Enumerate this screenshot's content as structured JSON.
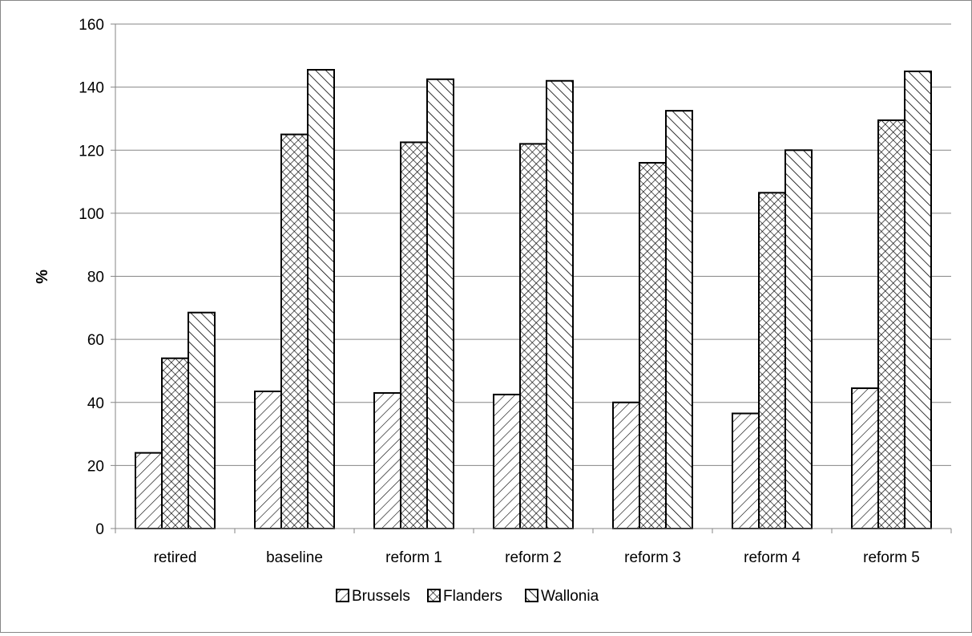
{
  "chart_data": {
    "type": "bar",
    "title": "",
    "xlabel": "",
    "ylabel": "%",
    "ylim": [
      0,
      160
    ],
    "yticks": [
      0,
      20,
      40,
      60,
      80,
      100,
      120,
      140,
      160
    ],
    "grid": true,
    "legend_position": "bottom",
    "categories": [
      "retired",
      "baseline",
      "reform 1",
      "reform 2",
      "reform 3",
      "reform 4",
      "reform 5"
    ],
    "series": [
      {
        "name": "Brussels",
        "pattern": "diagonal-hatch",
        "values": [
          24,
          43.5,
          43,
          42.5,
          40,
          36.5,
          44.5
        ]
      },
      {
        "name": "Flanders",
        "pattern": "cross-hatch",
        "values": [
          54,
          125,
          122.5,
          122,
          116,
          106.5,
          129.5
        ]
      },
      {
        "name": "Wallonia",
        "pattern": "back-diagonal-hatch",
        "values": [
          68.5,
          145.5,
          142.5,
          142,
          132.5,
          120,
          145
        ]
      }
    ],
    "colors": {
      "border": "#000000",
      "grid": "#868686",
      "fill": "#ffffff"
    }
  }
}
